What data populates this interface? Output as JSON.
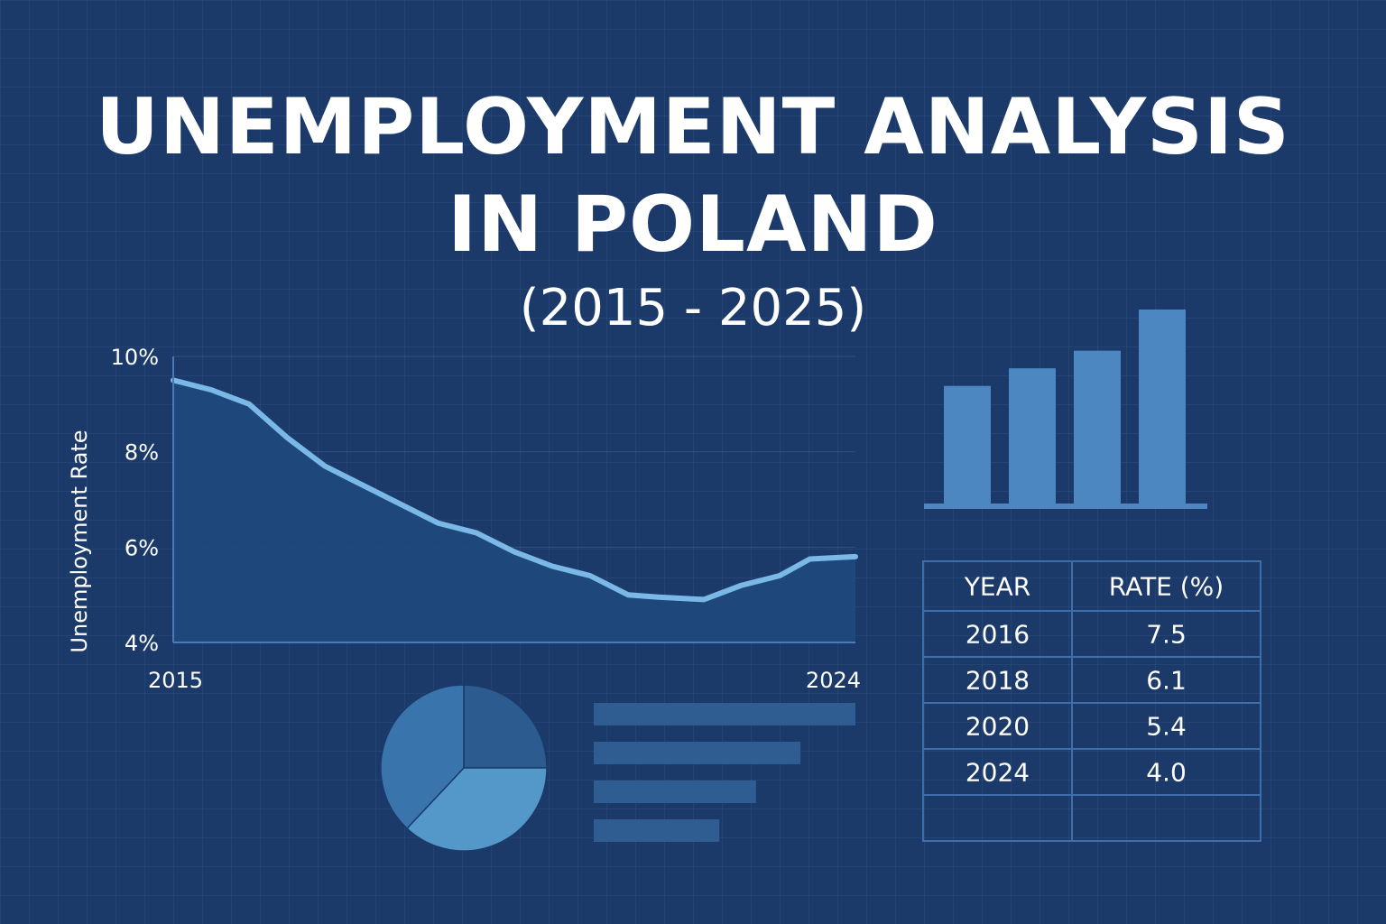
{
  "title": {
    "line1": "UNEMPLOYMENT ANALYSIS",
    "line2": "IN POLAND"
  },
  "subtitle": "(2015 - 2025)",
  "colors": {
    "background": "#1b3a6a",
    "line": "#7ab8e8",
    "area": "#1f4a7e",
    "axis": "#4a7bb8",
    "bar": "#4d87c2",
    "table_border": "#3f6fab",
    "pie": [
      "#2b5b8f",
      "#5497c9",
      "#3a74ad"
    ],
    "hbar": "#2f5d92"
  },
  "chart_data": [
    {
      "type": "line",
      "ylabel": "Unemployment Rate",
      "xlabel": "",
      "x_tick_labels": [
        "2015",
        "2024"
      ],
      "y_ticks": [
        {
          "value": 10,
          "label": "10%"
        },
        {
          "value": 8,
          "label": "8%"
        },
        {
          "value": 6,
          "label": "6%"
        },
        {
          "value": 4,
          "label": "4%"
        }
      ],
      "ylim": [
        4,
        10
      ],
      "xlim": [
        2015,
        2024
      ],
      "x": [
        2015,
        2015.5,
        2016,
        2016.5,
        2017,
        2017.5,
        2018,
        2018.5,
        2019,
        2019.5,
        2020,
        2020.5,
        2021,
        2021.4,
        2022,
        2022.5,
        2023,
        2023.4,
        2024
      ],
      "values": [
        9.5,
        9.3,
        9.0,
        8.3,
        7.7,
        7.3,
        6.9,
        6.5,
        6.3,
        5.9,
        5.6,
        5.4,
        5.0,
        4.95,
        4.9,
        5.2,
        5.4,
        5.75,
        5.8
      ],
      "grid": true
    },
    {
      "type": "bar",
      "categories": [
        "",
        "",
        "",
        ""
      ],
      "values": [
        4,
        4.6,
        5.2,
        6.6
      ],
      "ylim": [
        0,
        7
      ]
    },
    {
      "type": "pie",
      "values": [
        25,
        37,
        38
      ]
    },
    {
      "type": "bar",
      "orientation": "horizontal",
      "values": [
        100,
        79,
        62,
        48
      ],
      "xlim": [
        0,
        100
      ]
    },
    {
      "type": "table",
      "columns": [
        "YEAR",
        "RATE (%)"
      ],
      "rows": [
        [
          "2016",
          "7.5"
        ],
        [
          "2018",
          "6.1"
        ],
        [
          "2020",
          "5.4"
        ],
        [
          "2024",
          "4.0"
        ],
        [
          "",
          ""
        ]
      ]
    }
  ]
}
